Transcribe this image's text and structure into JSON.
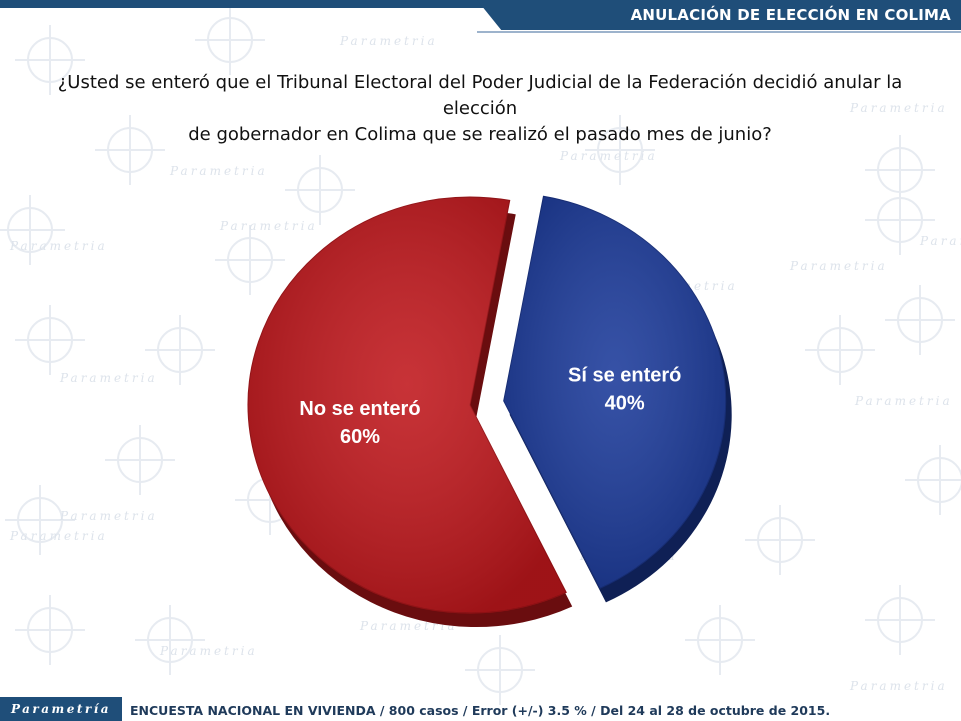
{
  "header": {
    "title": "ANULACIÓN DE ELECCIÓN EN COLIMA"
  },
  "question": {
    "line1": "¿Usted se enteró que el Tribunal Electoral del Poder Judicial de la Federación decidió anular la elección",
    "line2": "de gobernador en Colima que se realizó el pasado mes de junio?"
  },
  "chart_data": {
    "type": "pie",
    "categories": [
      "No se enteró",
      "Sí se enteró"
    ],
    "values": [
      60,
      40
    ],
    "labels": [
      "60%",
      "40%"
    ],
    "colors": [
      "#c0171c",
      "#1b3a9a"
    ],
    "exploded": true
  },
  "footer": {
    "brand": "Parametría",
    "note": "ENCUESTA NACIONAL EN VIVIENDA / 800 casos / Error (+/-) 3.5 % / Del 24 al 28 de octubre de 2015."
  },
  "watermark": {
    "text": "Parametria"
  }
}
